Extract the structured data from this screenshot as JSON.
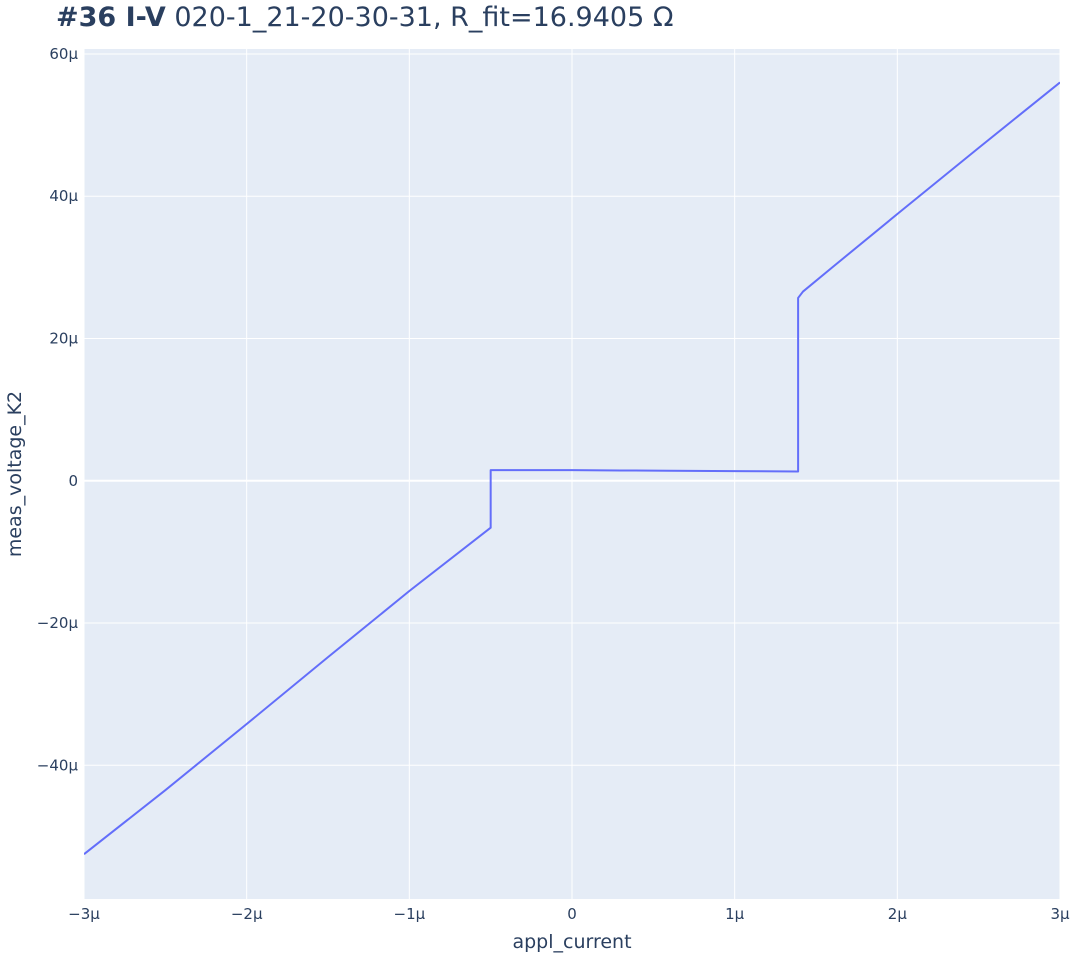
{
  "chart_data": {
    "type": "line",
    "title_bold": "#36 I-V",
    "title_rest": " 020-1_21-20-30-31, R_fit=16.9405 Ω",
    "xlabel": "appl_current",
    "ylabel": "meas_voltage_K2",
    "xlim": [
      -3e-06,
      3e-06
    ],
    "ylim": [
      -5.88e-05,
      6.07e-05
    ],
    "x_ticks": [
      -3e-06,
      -2e-06,
      -1e-06,
      0,
      1e-06,
      2e-06,
      3e-06
    ],
    "x_tick_labels": [
      "−3μ",
      "−2μ",
      "−1μ",
      "0",
      "1μ",
      "2μ",
      "3μ"
    ],
    "y_ticks": [
      -4e-05,
      -2e-05,
      0,
      2e-05,
      4e-05,
      6e-05
    ],
    "y_tick_labels": [
      "−40μ",
      "−20μ",
      "0",
      "20μ",
      "40μ",
      "60μ"
    ],
    "grid": true,
    "colors": {
      "line": "#636efa",
      "plot_bg": "#e5ecf6",
      "grid": "#ffffff",
      "text": "#2a3f5f"
    },
    "series": [
      {
        "x": [
          -3e-06,
          -2.5e-06,
          -2e-06,
          -1.5e-06,
          -1e-06,
          -5e-07,
          -5e-07,
          -2e-07,
          0,
          3e-07,
          6e-07,
          1e-06,
          1.39e-06,
          1.39e-06,
          1.42e-06,
          1.6e-06,
          2e-06,
          2.5e-06,
          3e-06
        ],
        "y": [
          -5.25e-05,
          -4.35e-05,
          -3.42e-05,
          -2.48e-05,
          -1.55e-05,
          -6.6e-06,
          1.5e-06,
          1.5e-06,
          1.5e-06,
          1.45e-06,
          1.4e-06,
          1.35e-06,
          1.3e-06,
          2.57e-05,
          2.66e-05,
          3e-05,
          3.75e-05,
          4.68e-05,
          5.6e-05
        ]
      }
    ]
  }
}
